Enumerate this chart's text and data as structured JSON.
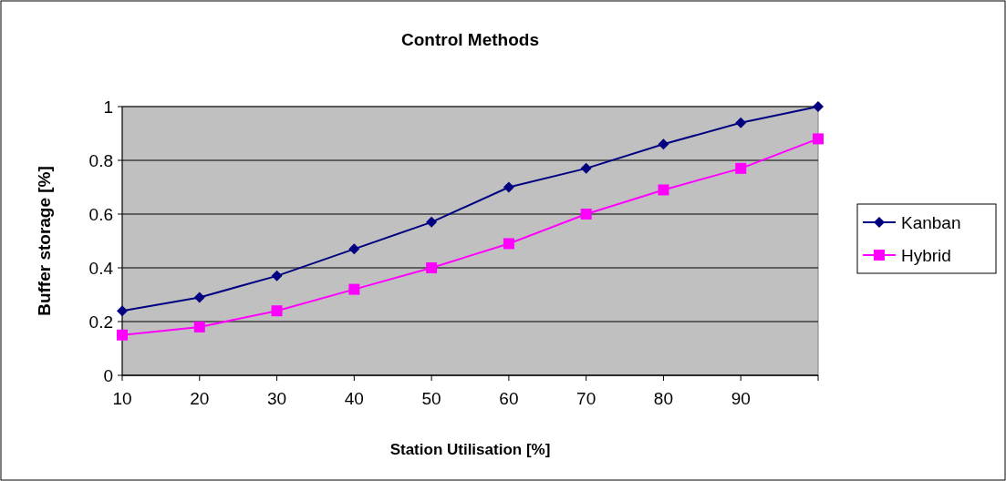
{
  "chart_data": {
    "type": "line",
    "title": "Control Methods",
    "xlabel": "Station Utilisation [%]",
    "ylabel": "Buffer storage [%]",
    "categories": [
      "10",
      "20",
      "30",
      "40",
      "50",
      "60",
      "70",
      "80",
      "90",
      null
    ],
    "series": [
      {
        "name": "Kanban",
        "color": "#000080",
        "marker": "diamond",
        "values": [
          0.24,
          0.29,
          0.37,
          0.47,
          0.57,
          0.7,
          0.77,
          0.86,
          0.94,
          1.0
        ]
      },
      {
        "name": "Hybrid",
        "color": "#ff00ff",
        "marker": "square",
        "values": [
          0.15,
          0.18,
          0.24,
          0.32,
          0.4,
          0.49,
          0.6,
          0.69,
          0.77,
          0.88
        ]
      }
    ],
    "ylim": [
      0,
      1
    ],
    "yticks": [
      0,
      0.2,
      0.4,
      0.6,
      0.8,
      1
    ],
    "grid": "y",
    "legend": "right"
  }
}
